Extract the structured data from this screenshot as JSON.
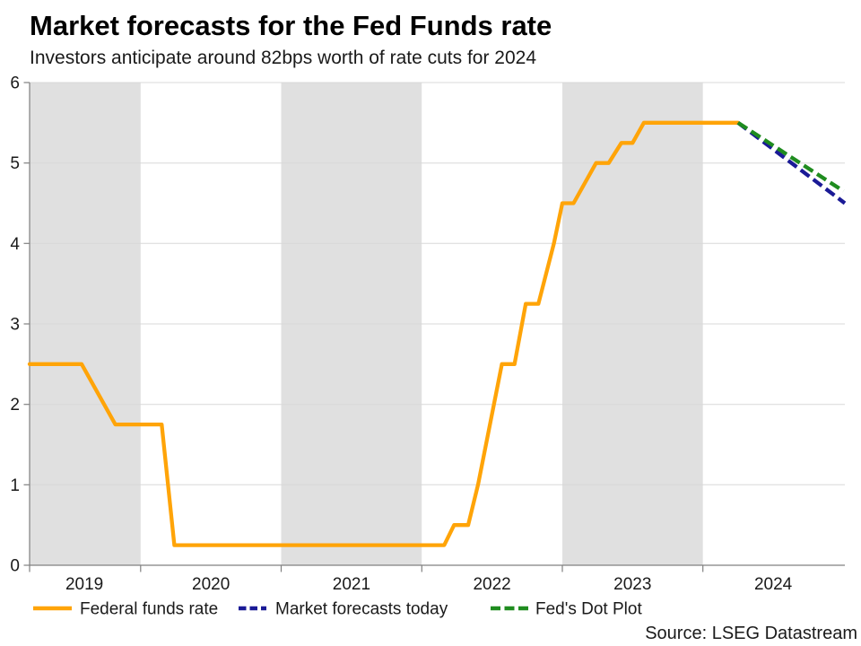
{
  "chart_data": {
    "type": "line",
    "title": "Market forecasts for the Fed Funds rate",
    "subtitle": "Investors anticipate around 82bps worth of rate cuts for 2024",
    "source": "Source: LSEG Datastream",
    "xlabel": "",
    "ylabel": "",
    "x_axis": {
      "xlim": [
        2019.21,
        2025.01
      ],
      "boundary_ticks": [
        2019.21,
        2020,
        2021,
        2022,
        2023,
        2024
      ],
      "year_labels": [
        "2019",
        "2020",
        "2021",
        "2022",
        "2023",
        "2024"
      ],
      "year_label_positions": [
        2019.6,
        2020.5,
        2021.5,
        2022.5,
        2023.5,
        2024.5
      ]
    },
    "y_axis": {
      "ylim": [
        0,
        6
      ],
      "ticks": [
        0,
        1,
        2,
        3,
        4,
        5,
        6
      ],
      "tick_labels": [
        "0",
        "1",
        "2",
        "3",
        "4",
        "5",
        "6"
      ]
    },
    "grid": "horizontal",
    "legend_position": "bottom",
    "shaded_year_bands": [
      [
        2019.21,
        2020
      ],
      [
        2021,
        2022
      ],
      [
        2023,
        2024
      ]
    ],
    "colors": {
      "band": "#E0E0E0",
      "gridline": "#D8D8D8",
      "axis": "#808080",
      "text": "#1A1A1A"
    },
    "series": [
      {
        "name": "Federal funds rate",
        "color": "#FFA408",
        "style": "solid",
        "points": [
          [
            2019.21,
            2.5
          ],
          [
            2019.58,
            2.5
          ],
          [
            2019.82,
            1.75
          ],
          [
            2020.15,
            1.75
          ],
          [
            2020.24,
            0.25
          ],
          [
            2022.16,
            0.25
          ],
          [
            2022.23,
            0.5
          ],
          [
            2022.33,
            0.5
          ],
          [
            2022.4,
            1.0
          ],
          [
            2022.57,
            2.5
          ],
          [
            2022.66,
            2.5
          ],
          [
            2022.74,
            3.25
          ],
          [
            2022.83,
            3.25
          ],
          [
            2022.94,
            4.0
          ],
          [
            2023.0,
            4.5
          ],
          [
            2023.08,
            4.5
          ],
          [
            2023.24,
            5.0
          ],
          [
            2023.33,
            5.0
          ],
          [
            2023.42,
            5.25
          ],
          [
            2023.5,
            5.25
          ],
          [
            2023.58,
            5.5
          ],
          [
            2024.25,
            5.5
          ]
        ]
      },
      {
        "name": "Market forecasts today",
        "color": "#1A1A96",
        "style": "dashed",
        "points": [
          [
            2024.25,
            5.5
          ],
          [
            2025.01,
            4.5
          ]
        ]
      },
      {
        "name": "Fed's Dot Plot",
        "color": "#1F8C1F",
        "style": "dashed",
        "points": [
          [
            2024.25,
            5.5
          ],
          [
            2025.0,
            4.65
          ]
        ]
      }
    ]
  }
}
